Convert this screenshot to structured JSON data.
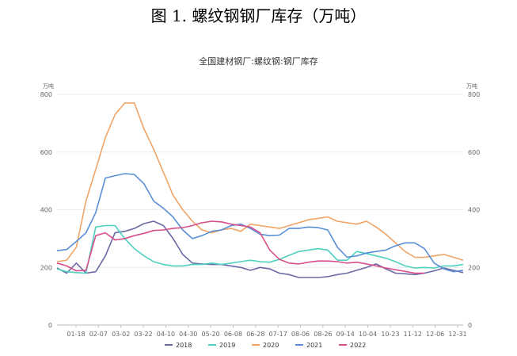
{
  "figure": {
    "caption": "图 1. 螺纹钢钢厂库存（万吨）"
  },
  "chart_data": {
    "type": "line",
    "title": "全国建材钢厂:螺纹钢:钢厂库存",
    "y_unit_left": "万吨",
    "y_unit_right": "万吨",
    "ylim": [
      0,
      800
    ],
    "y_ticks": [
      0,
      200,
      400,
      600,
      800
    ],
    "x_labels": [
      "01-18",
      "02-07",
      "03-02",
      "03-22",
      "04-10",
      "04-30",
      "05-20",
      "06-08",
      "06-28",
      "07-17",
      "08-06",
      "08-26",
      "09-14",
      "10-04",
      "10-23",
      "11-12",
      "12-06",
      "12-31"
    ],
    "legend_position": "bottom",
    "series": [
      {
        "name": "2018",
        "color": "#6a6aa5",
        "values": [
          198,
          180,
          215,
          180,
          185,
          240,
          320,
          325,
          335,
          352,
          360,
          345,
          300,
          245,
          215,
          212,
          210,
          210,
          205,
          200,
          190,
          200,
          195,
          180,
          175,
          165,
          165,
          165,
          168,
          175,
          180,
          190,
          200,
          212,
          195,
          180,
          178,
          175,
          180,
          188,
          198,
          190,
          182
        ]
      },
      {
        "name": "2019",
        "color": "#4fcfc0",
        "values": [
          195,
          185,
          182,
          180,
          340,
          345,
          345,
          300,
          265,
          240,
          220,
          210,
          205,
          205,
          210,
          210,
          215,
          210,
          215,
          220,
          225,
          220,
          218,
          228,
          242,
          255,
          260,
          265,
          260,
          225,
          225,
          255,
          248,
          240,
          232,
          220,
          205,
          198,
          200,
          198,
          205,
          205,
          210
        ]
      },
      {
        "name": "2020",
        "color": "#f0a465",
        "values": [
          220,
          225,
          270,
          430,
          540,
          650,
          730,
          770,
          770,
          680,
          610,
          530,
          450,
          400,
          360,
          330,
          320,
          330,
          335,
          325,
          350,
          345,
          340,
          335,
          345,
          355,
          365,
          370,
          375,
          360,
          355,
          350,
          360,
          340,
          315,
          285,
          255,
          235,
          235,
          240,
          245,
          235,
          225
        ]
      },
      {
        "name": "2021",
        "color": "#5a8fd6",
        "values": [
          258,
          262,
          290,
          320,
          390,
          510,
          518,
          525,
          522,
          490,
          430,
          405,
          375,
          330,
          300,
          310,
          325,
          330,
          345,
          350,
          335,
          315,
          310,
          312,
          335,
          335,
          340,
          338,
          330,
          270,
          235,
          240,
          250,
          255,
          260,
          275,
          285,
          285,
          265,
          215,
          195,
          185,
          190
        ]
      },
      {
        "name": "2022",
        "color": "#d94f8a",
        "values": [
          215,
          205,
          188,
          190,
          310,
          320,
          295,
          300,
          310,
          318,
          328,
          330,
          335,
          338,
          345,
          355,
          360,
          358,
          350,
          345,
          340,
          320,
          260,
          228,
          215,
          212,
          218,
          222,
          222,
          220,
          215,
          218,
          212,
          205,
          198,
          192,
          186,
          180,
          180,
          null,
          null,
          null,
          null
        ]
      }
    ]
  }
}
